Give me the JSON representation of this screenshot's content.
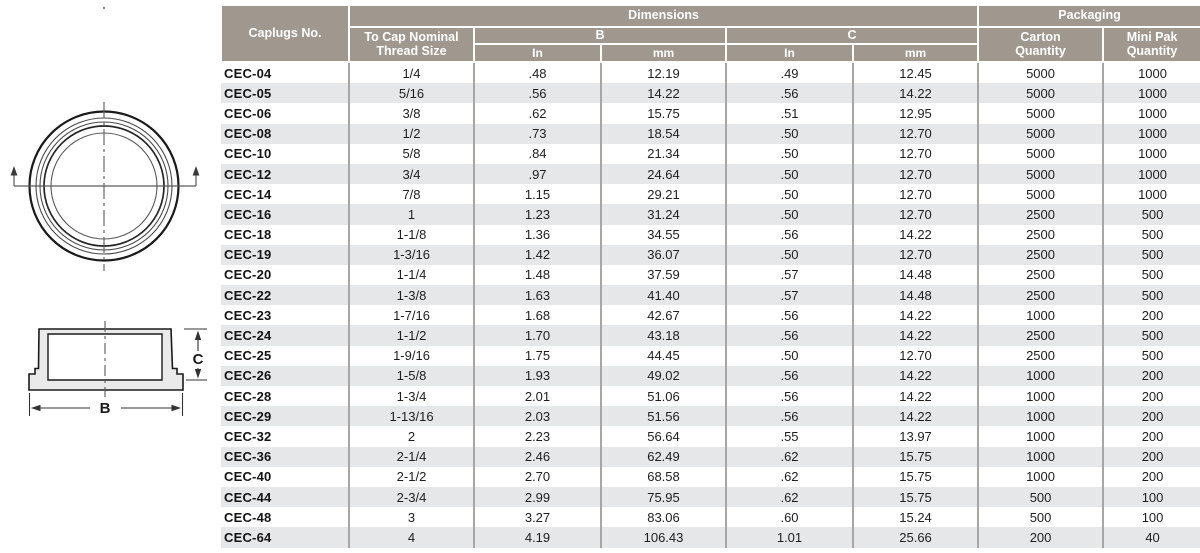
{
  "diagram": {
    "dim_label_b": "B",
    "dim_label_c": "C"
  },
  "table": {
    "header": {
      "caplugs_no": "Caplugs No.",
      "dimensions": "Dimensions",
      "packaging": "Packaging",
      "thread_line1": "To Cap Nominal",
      "thread_line2": "Thread Size",
      "col_b": "B",
      "col_c": "C",
      "b_in": "In",
      "b_mm": "mm",
      "c_in": "In",
      "c_mm": "mm",
      "carton_line1": "Carton",
      "carton_line2": "Quantity",
      "minipak_line1": "Mini Pak",
      "minipak_line2": "Quantity"
    }
  },
  "chart_data": {
    "type": "table",
    "columns": [
      "Caplugs No.",
      "To Cap Nominal Thread Size",
      "B In",
      "B mm",
      "C In",
      "C mm",
      "Carton Quantity",
      "Mini Pak Quantity"
    ],
    "rows": [
      [
        "CEC-04",
        "1/4",
        ".48",
        "12.19",
        ".49",
        "12.45",
        "5000",
        "1000"
      ],
      [
        "CEC-05",
        "5/16",
        ".56",
        "14.22",
        ".56",
        "14.22",
        "5000",
        "1000"
      ],
      [
        "CEC-06",
        "3/8",
        ".62",
        "15.75",
        ".51",
        "12.95",
        "5000",
        "1000"
      ],
      [
        "CEC-08",
        "1/2",
        ".73",
        "18.54",
        ".50",
        "12.70",
        "5000",
        "1000"
      ],
      [
        "CEC-10",
        "5/8",
        ".84",
        "21.34",
        ".50",
        "12.70",
        "5000",
        "1000"
      ],
      [
        "CEC-12",
        "3/4",
        ".97",
        "24.64",
        ".50",
        "12.70",
        "5000",
        "1000"
      ],
      [
        "CEC-14",
        "7/8",
        "1.15",
        "29.21",
        ".50",
        "12.70",
        "5000",
        "1000"
      ],
      [
        "CEC-16",
        "1",
        "1.23",
        "31.24",
        ".50",
        "12.70",
        "2500",
        "500"
      ],
      [
        "CEC-18",
        "1-1/8",
        "1.36",
        "34.55",
        ".56",
        "14.22",
        "2500",
        "500"
      ],
      [
        "CEC-19",
        "1-3/16",
        "1.42",
        "36.07",
        ".50",
        "12.70",
        "2500",
        "500"
      ],
      [
        "CEC-20",
        "1-1/4",
        "1.48",
        "37.59",
        ".57",
        "14.48",
        "2500",
        "500"
      ],
      [
        "CEC-22",
        "1-3/8",
        "1.63",
        "41.40",
        ".57",
        "14.48",
        "2500",
        "500"
      ],
      [
        "CEC-23",
        "1-7/16",
        "1.68",
        "42.67",
        ".56",
        "14.22",
        "1000",
        "200"
      ],
      [
        "CEC-24",
        "1-1/2",
        "1.70",
        "43.18",
        ".56",
        "14.22",
        "2500",
        "500"
      ],
      [
        "CEC-25",
        "1-9/16",
        "1.75",
        "44.45",
        ".50",
        "12.70",
        "2500",
        "500"
      ],
      [
        "CEC-26",
        "1-5/8",
        "1.93",
        "49.02",
        ".56",
        "14.22",
        "1000",
        "200"
      ],
      [
        "CEC-28",
        "1-3/4",
        "2.01",
        "51.06",
        ".56",
        "14.22",
        "1000",
        "200"
      ],
      [
        "CEC-29",
        "1-13/16",
        "2.03",
        "51.56",
        ".56",
        "14.22",
        "1000",
        "200"
      ],
      [
        "CEC-32",
        "2",
        "2.23",
        "56.64",
        ".55",
        "13.97",
        "1000",
        "200"
      ],
      [
        "CEC-36",
        "2-1/4",
        "2.46",
        "62.49",
        ".62",
        "15.75",
        "1000",
        "200"
      ],
      [
        "CEC-40",
        "2-1/2",
        "2.70",
        "68.58",
        ".62",
        "15.75",
        "1000",
        "200"
      ],
      [
        "CEC-44",
        "2-3/4",
        "2.99",
        "75.95",
        ".62",
        "15.75",
        "500",
        "100"
      ],
      [
        "CEC-48",
        "3",
        "3.27",
        "83.06",
        ".60",
        "15.24",
        "500",
        "100"
      ],
      [
        "CEC-64",
        "4",
        "4.19",
        "106.43",
        "1.01",
        "25.66",
        "200",
        "40"
      ]
    ]
  },
  "colors": {
    "header_bg": "#a0988f",
    "stripe_bg": "#e5e7e9",
    "grid_line": "#a8a6a4",
    "header_text": "#ffffff",
    "body_text": "#1e1e1e"
  }
}
